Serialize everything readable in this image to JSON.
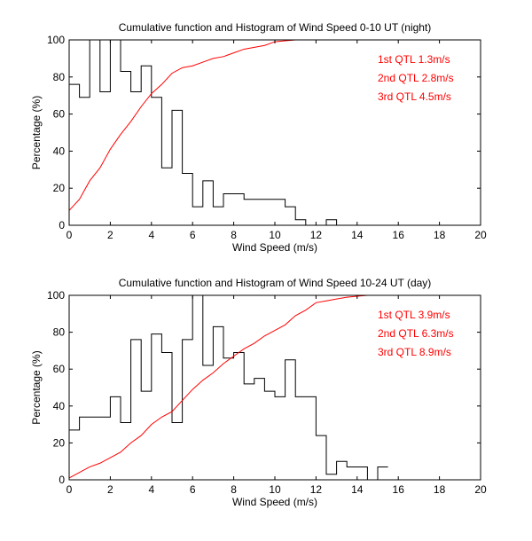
{
  "chart_data": [
    {
      "type": "line",
      "title": "Cumulative function and Histogram of Wind Speed 0-10 UT (night)",
      "xlabel": "Wind Speed (m/s)",
      "ylabel": "Percentage (%)",
      "xlim": [
        0,
        20
      ],
      "ylim": [
        0,
        100
      ],
      "xticks": [
        0,
        2,
        4,
        6,
        8,
        10,
        12,
        14,
        16,
        18,
        20
      ],
      "yticks": [
        0,
        20,
        40,
        60,
        80,
        100
      ],
      "grid": false,
      "annotations": [
        "1st QTL 1.3m/s",
        "2nd QTL 2.8m/s",
        "3rd QTL 4.5m/s"
      ],
      "colors": {
        "histogram": "#000000",
        "cumulative": "#ff0000",
        "annotation": "#ff0000"
      },
      "series": [
        {
          "name": "histogram",
          "kind": "stairs",
          "edges": [
            0,
            0.5,
            1,
            1.5,
            2,
            2.5,
            3,
            3.5,
            4,
            4.5,
            5,
            5.5,
            6,
            6.5,
            7,
            7.5,
            8,
            8.5,
            9,
            9.5,
            10,
            10.5,
            11,
            11.5,
            12,
            12.5,
            13,
            13.5
          ],
          "values": [
            76,
            69,
            100,
            72,
            100,
            83,
            72,
            86,
            69,
            31,
            62,
            28,
            10,
            24,
            10,
            17,
            17,
            14,
            14,
            14,
            14,
            10,
            3,
            0,
            0,
            3,
            0
          ]
        },
        {
          "name": "cumulative",
          "kind": "line",
          "x": [
            0,
            0.5,
            1,
            1.5,
            2,
            2.5,
            3,
            3.5,
            4,
            4.5,
            5,
            5.5,
            6,
            6.5,
            7,
            7.5,
            8,
            8.5,
            9,
            9.5,
            10,
            10.5,
            11,
            12,
            13,
            14,
            16,
            20
          ],
          "y": [
            8,
            14,
            24,
            31,
            41,
            49,
            56,
            64,
            71,
            76,
            82,
            85,
            86,
            88,
            90,
            91,
            93,
            95,
            96,
            97,
            99,
            99.5,
            100,
            100,
            100,
            100,
            100,
            100
          ]
        }
      ]
    },
    {
      "type": "line",
      "title": "Cumulative function and Histogram of Wind Speed 10-24 UT (day)",
      "xlabel": "Wind Speed (m/s)",
      "ylabel": "Percentage (%)",
      "xlim": [
        0,
        20
      ],
      "ylim": [
        0,
        100
      ],
      "xticks": [
        0,
        2,
        4,
        6,
        8,
        10,
        12,
        14,
        16,
        18,
        20
      ],
      "yticks": [
        0,
        20,
        40,
        60,
        80,
        100
      ],
      "grid": false,
      "annotations": [
        "1st QTL 3.9m/s",
        "2nd QTL 6.3m/s",
        "3rd QTL 8.9m/s"
      ],
      "colors": {
        "histogram": "#000000",
        "cumulative": "#ff0000",
        "annotation": "#ff0000"
      },
      "series": [
        {
          "name": "histogram",
          "kind": "stairs",
          "edges": [
            0,
            0.5,
            1,
            1.5,
            2,
            2.5,
            3,
            3.5,
            4,
            4.5,
            5,
            5.5,
            6,
            6.5,
            7,
            7.5,
            8,
            8.5,
            9,
            9.5,
            10,
            10.5,
            11,
            11.5,
            12,
            12.5,
            13,
            13.5,
            14,
            14.5,
            15,
            15.5
          ],
          "values": [
            27,
            34,
            34,
            34,
            45,
            31,
            76,
            48,
            79,
            69,
            31,
            76,
            100,
            62,
            83,
            66,
            69,
            52,
            55,
            48,
            45,
            65,
            45,
            45,
            24,
            3,
            10,
            7,
            7,
            0,
            7
          ]
        },
        {
          "name": "cumulative",
          "kind": "line",
          "x": [
            0,
            0.5,
            1,
            1.5,
            2,
            2.5,
            3,
            3.5,
            4,
            4.5,
            5,
            5.5,
            6,
            6.5,
            7,
            7.5,
            8,
            8.5,
            9,
            9.5,
            10,
            10.5,
            11,
            11.5,
            12,
            12.5,
            13,
            13.5,
            14,
            14.5,
            15,
            20
          ],
          "y": [
            1,
            4,
            7,
            9,
            12,
            15,
            20,
            24,
            30,
            34,
            37,
            43,
            49,
            54,
            58,
            63,
            67,
            71,
            74,
            78,
            81,
            84,
            89,
            92,
            96,
            97,
            98,
            99,
            99.5,
            100,
            100,
            100
          ]
        }
      ]
    }
  ]
}
